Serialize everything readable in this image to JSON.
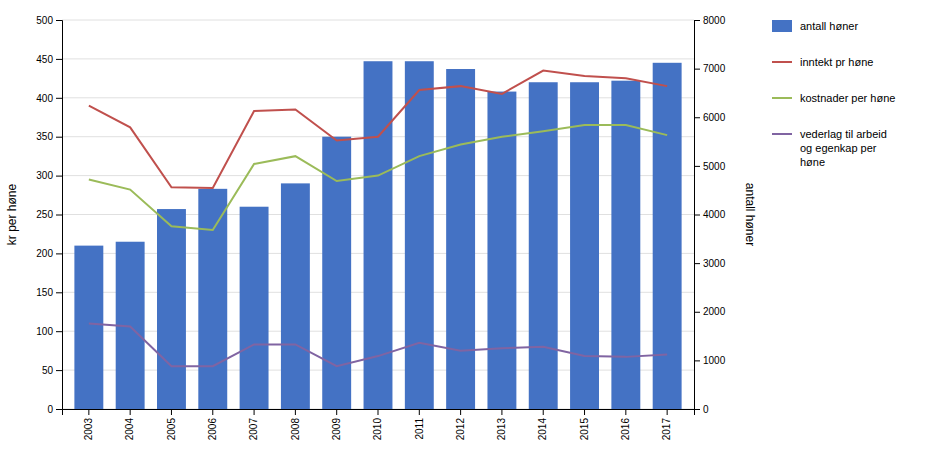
{
  "chart_data": {
    "type": "bar",
    "categories": [
      "2003",
      "2004",
      "2005",
      "2006",
      "2007",
      "2008",
      "2009",
      "2010",
      "2011",
      "2012",
      "2013",
      "2014",
      "2015",
      "2016",
      "2017"
    ],
    "series": [
      {
        "name": "antall høner",
        "type": "bar",
        "axis": "y2",
        "color": "#4472C4",
        "values": [
          3360,
          3440,
          4112,
          4528,
          4160,
          4640,
          5600,
          7152,
          7152,
          6992,
          6528,
          6720,
          6720,
          6752,
          7120
        ]
      },
      {
        "name": "inntekt pr høne",
        "type": "line",
        "color": "#C0504D",
        "values": [
          390,
          362,
          285,
          284,
          383,
          385,
          345,
          350,
          410,
          415,
          405,
          435,
          428,
          425,
          415
        ]
      },
      {
        "name": "kostnader per høne",
        "type": "line",
        "color": "#9BBB59",
        "values": [
          295,
          282,
          235,
          230,
          315,
          325,
          293,
          300,
          325,
          340,
          350,
          357,
          365,
          365,
          352
        ]
      },
      {
        "name": "vederlag til arbeid\nog egenkap per\nhøne",
        "type": "line",
        "color": "#8064A2",
        "values": [
          110,
          106,
          55,
          55,
          83,
          83,
          55,
          68,
          85,
          75,
          78,
          80,
          68,
          67,
          70
        ]
      }
    ],
    "ylabel": "kr per høne",
    "y2label": "antall høner",
    "ylim": [
      0,
      500
    ],
    "yticks": [
      0,
      50,
      100,
      150,
      200,
      250,
      300,
      350,
      400,
      450,
      500
    ],
    "y2lim": [
      0,
      8000
    ],
    "y2ticks": [
      0,
      1000,
      2000,
      3000,
      4000,
      5000,
      6000,
      7000,
      8000
    ],
    "grid": true,
    "legend": "right"
  }
}
